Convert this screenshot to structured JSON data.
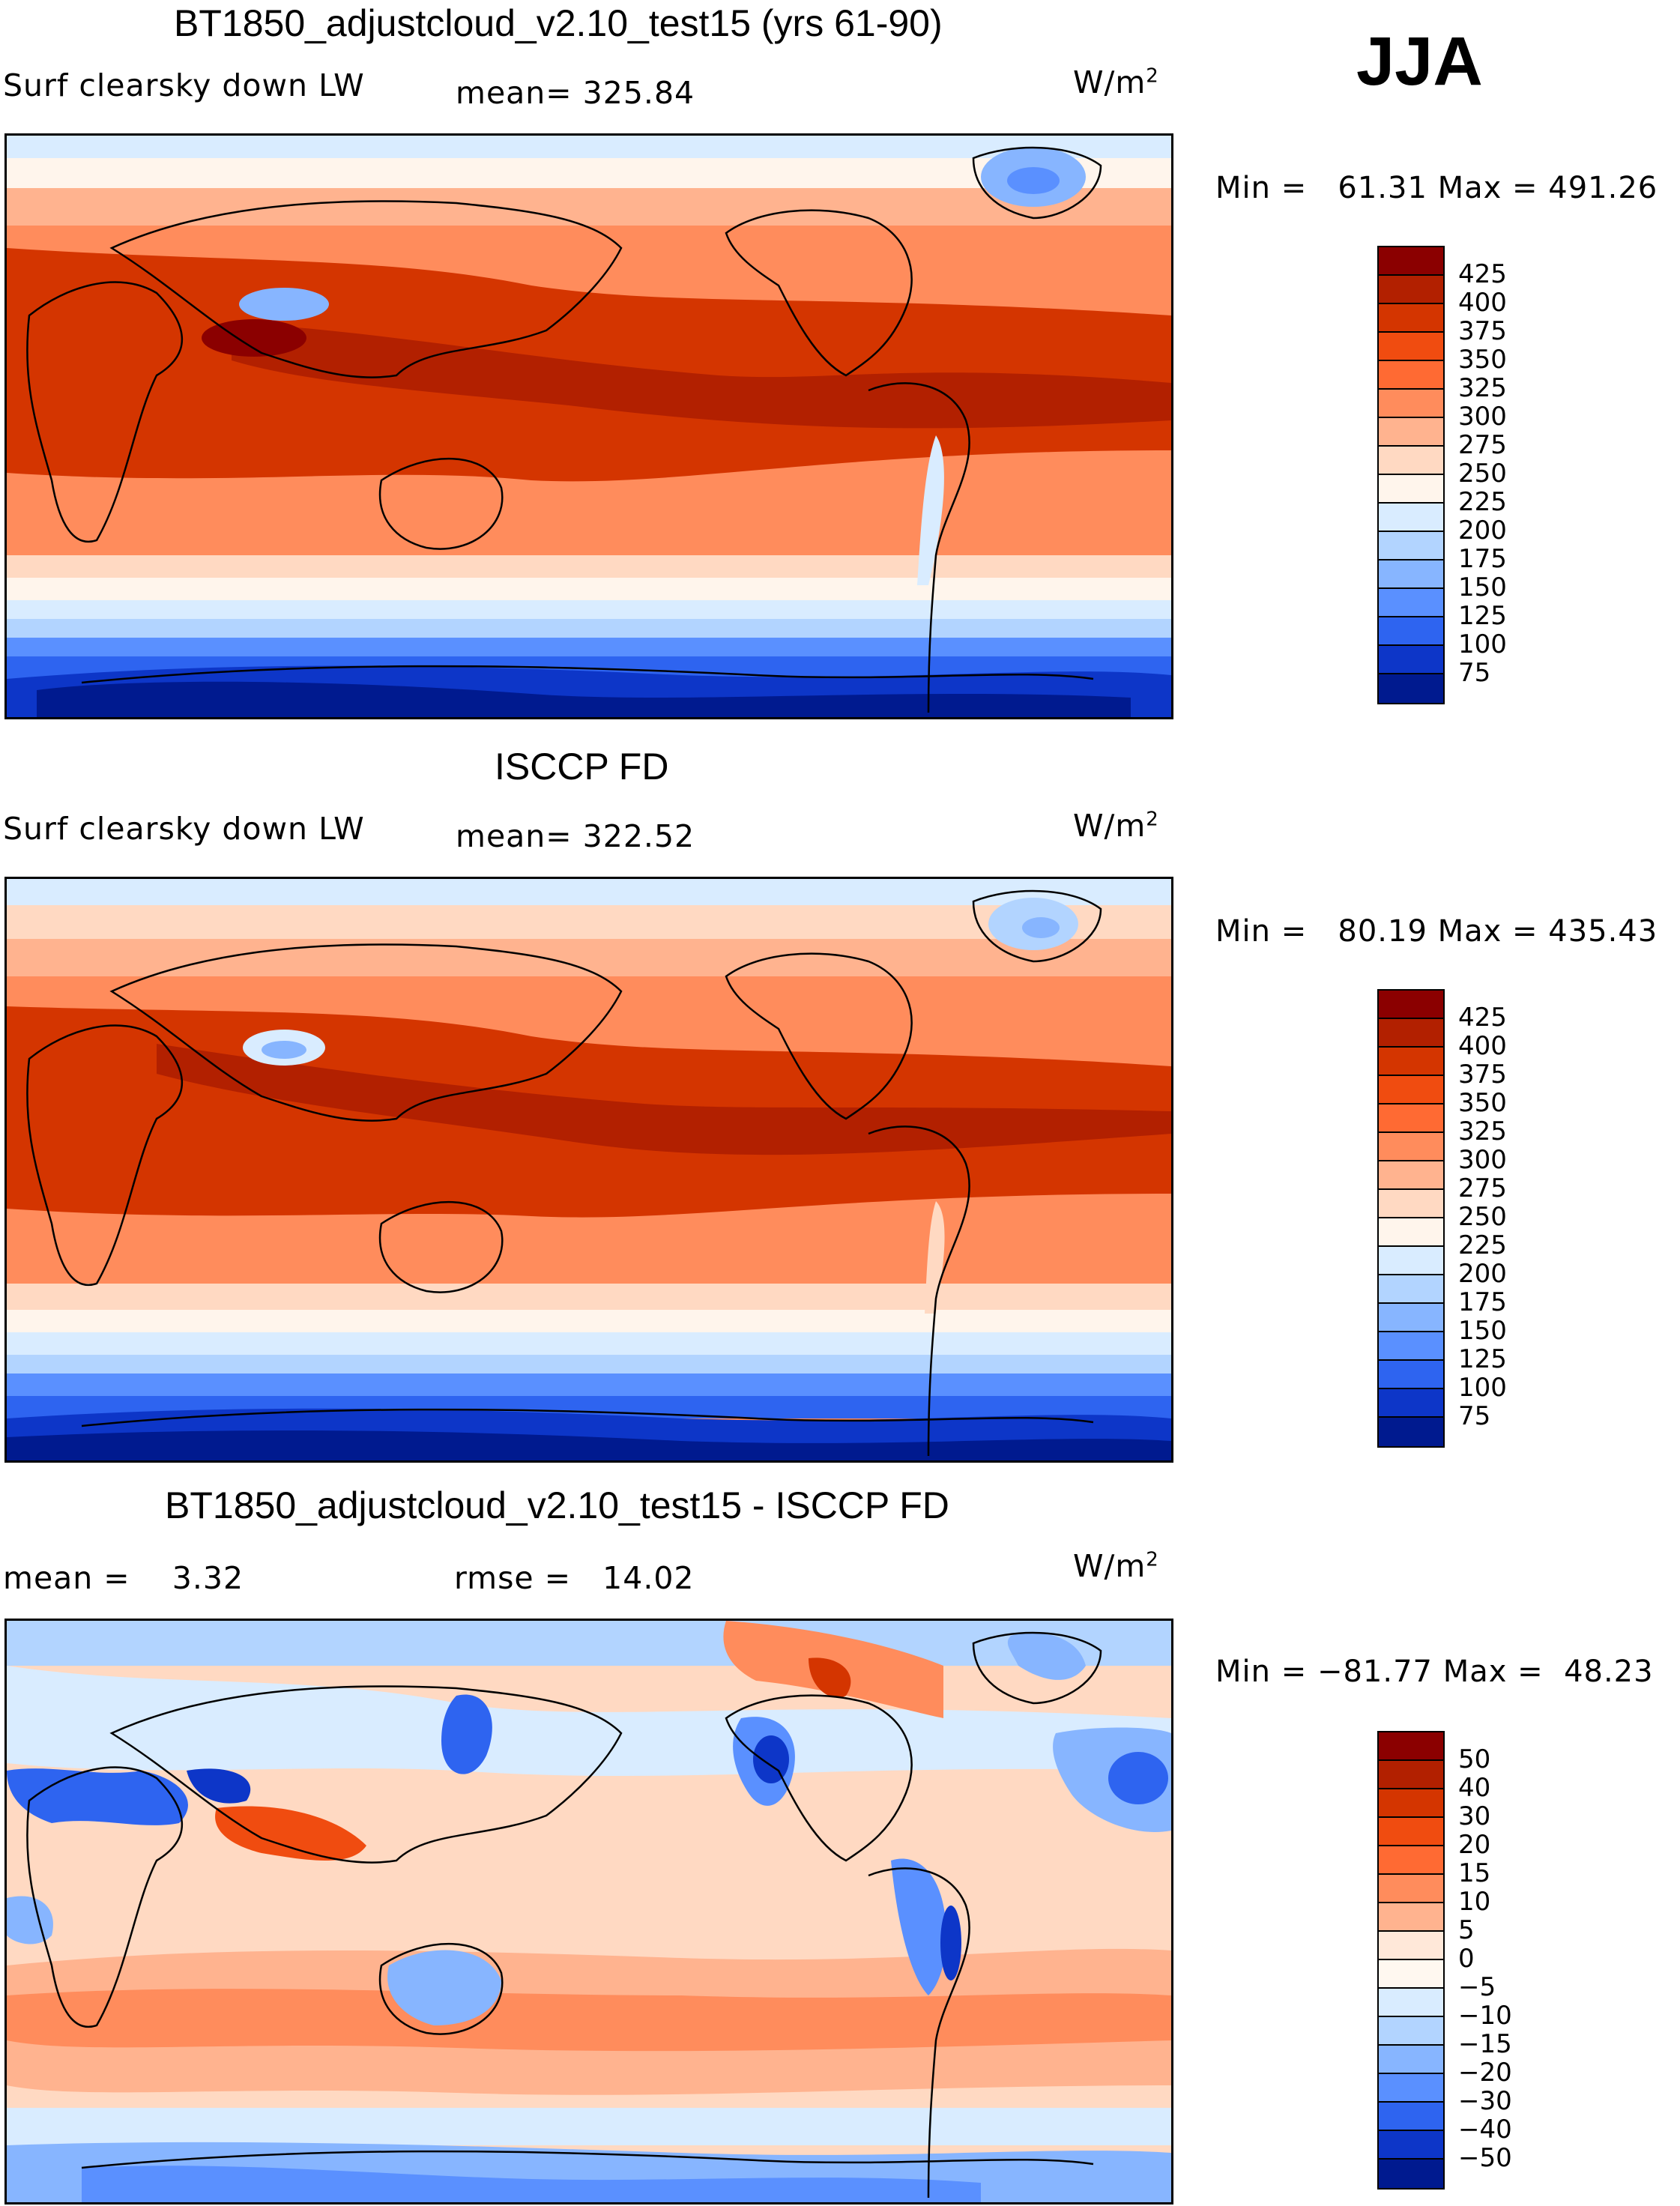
{
  "season": "JJA",
  "panels": [
    {
      "title": "BT1850_adjustcloud_v2.10_test15 (yrs 61-90)",
      "left_label": "Surf clearsky down LW",
      "stat_label": "mean= 325.84",
      "units": "W/m",
      "units_sup": "2",
      "min_label": "Min =",
      "min_value": "61.31",
      "max_label": "Max =",
      "max_value": "491.26",
      "colorbar": {
        "labels": [
          "425",
          "400",
          "375",
          "350",
          "325",
          "300",
          "275",
          "250",
          "225",
          "200",
          "175",
          "150",
          "125",
          "100",
          "75"
        ],
        "colors": [
          "#8b0000",
          "#b22000",
          "#d43500",
          "#f04c10",
          "#ff6a33",
          "#ff8c5c",
          "#ffb38f",
          "#ffd9c2",
          "#fff5ec",
          "#d9ecff",
          "#b2d4ff",
          "#87b5ff",
          "#5a90ff",
          "#2e64f0",
          "#0d36c8",
          "#001a8f"
        ]
      }
    },
    {
      "title": "ISCCP FD",
      "left_label": "Surf clearsky down LW",
      "stat_label": "mean= 322.52",
      "units": "W/m",
      "units_sup": "2",
      "min_label": "Min =",
      "min_value": "80.19",
      "max_label": "Max =",
      "max_value": "435.43",
      "colorbar": {
        "labels": [
          "425",
          "400",
          "375",
          "350",
          "325",
          "300",
          "275",
          "250",
          "225",
          "200",
          "175",
          "150",
          "125",
          "100",
          "75"
        ],
        "colors": [
          "#8b0000",
          "#b22000",
          "#d43500",
          "#f04c10",
          "#ff6a33",
          "#ff8c5c",
          "#ffb38f",
          "#ffd9c2",
          "#fff5ec",
          "#d9ecff",
          "#b2d4ff",
          "#87b5ff",
          "#5a90ff",
          "#2e64f0",
          "#0d36c8",
          "#001a8f"
        ]
      }
    },
    {
      "title": "BT1850_adjustcloud_v2.10_test15 - ISCCP FD",
      "left_label": "mean =    3.32",
      "stat_label": "rmse =   14.02",
      "units": "W/m",
      "units_sup": "2",
      "min_label": "Min =",
      "min_value": "−81.77",
      "max_label": "Max =",
      "max_value": "48.23",
      "colorbar": {
        "labels": [
          "50",
          "40",
          "30",
          "20",
          "15",
          "10",
          "5",
          "0",
          "−5",
          "−10",
          "−15",
          "−20",
          "−30",
          "−40",
          "−50"
        ],
        "colors": [
          "#8b0000",
          "#b22000",
          "#d43500",
          "#f04c10",
          "#ff6a33",
          "#ff8c5c",
          "#ffb38f",
          "#ffe8d9",
          "#fff8f0",
          "#d9ecff",
          "#b2d4ff",
          "#87b5ff",
          "#5a90ff",
          "#2e64f0",
          "#0d36c8",
          "#001a8f"
        ]
      }
    }
  ]
}
